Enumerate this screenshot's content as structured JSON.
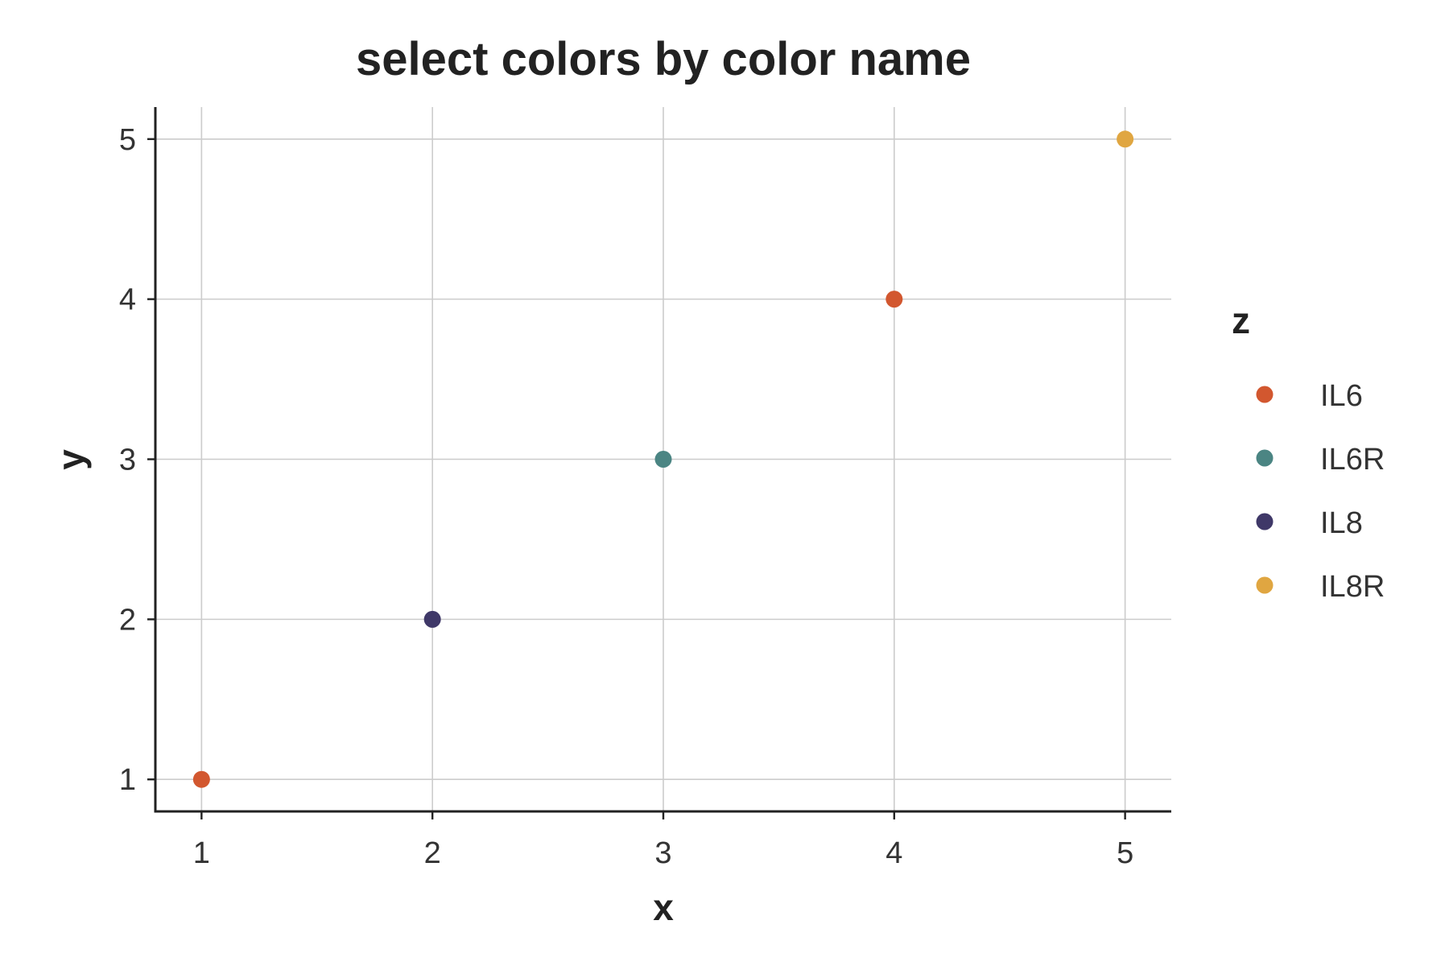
{
  "chart_data": {
    "type": "scatter",
    "title": "select colors by color name",
    "xlabel": "x",
    "ylabel": "y",
    "xlim": [
      0.8,
      5.2
    ],
    "ylim": [
      0.8,
      5.2
    ],
    "xticks": [
      "1",
      "2",
      "3",
      "4",
      "5"
    ],
    "yticks": [
      "1",
      "2",
      "3",
      "4",
      "5"
    ],
    "grid": true,
    "legend": {
      "title": "z",
      "placement": "right",
      "entries": [
        "IL6",
        "IL6R",
        "IL8",
        "IL8R"
      ]
    },
    "colors": {
      "IL6": "#d2572f",
      "IL6R": "#4b8583",
      "IL8": "#3f3868",
      "IL8R": "#e0a641"
    },
    "series": [
      {
        "name": "IL6",
        "x": [
          1,
          4
        ],
        "y": [
          1,
          4
        ]
      },
      {
        "name": "IL6R",
        "x": [
          3
        ],
        "y": [
          3
        ]
      },
      {
        "name": "IL8",
        "x": [
          2
        ],
        "y": [
          2
        ]
      },
      {
        "name": "IL8R",
        "x": [
          5
        ],
        "y": [
          5
        ]
      }
    ]
  }
}
